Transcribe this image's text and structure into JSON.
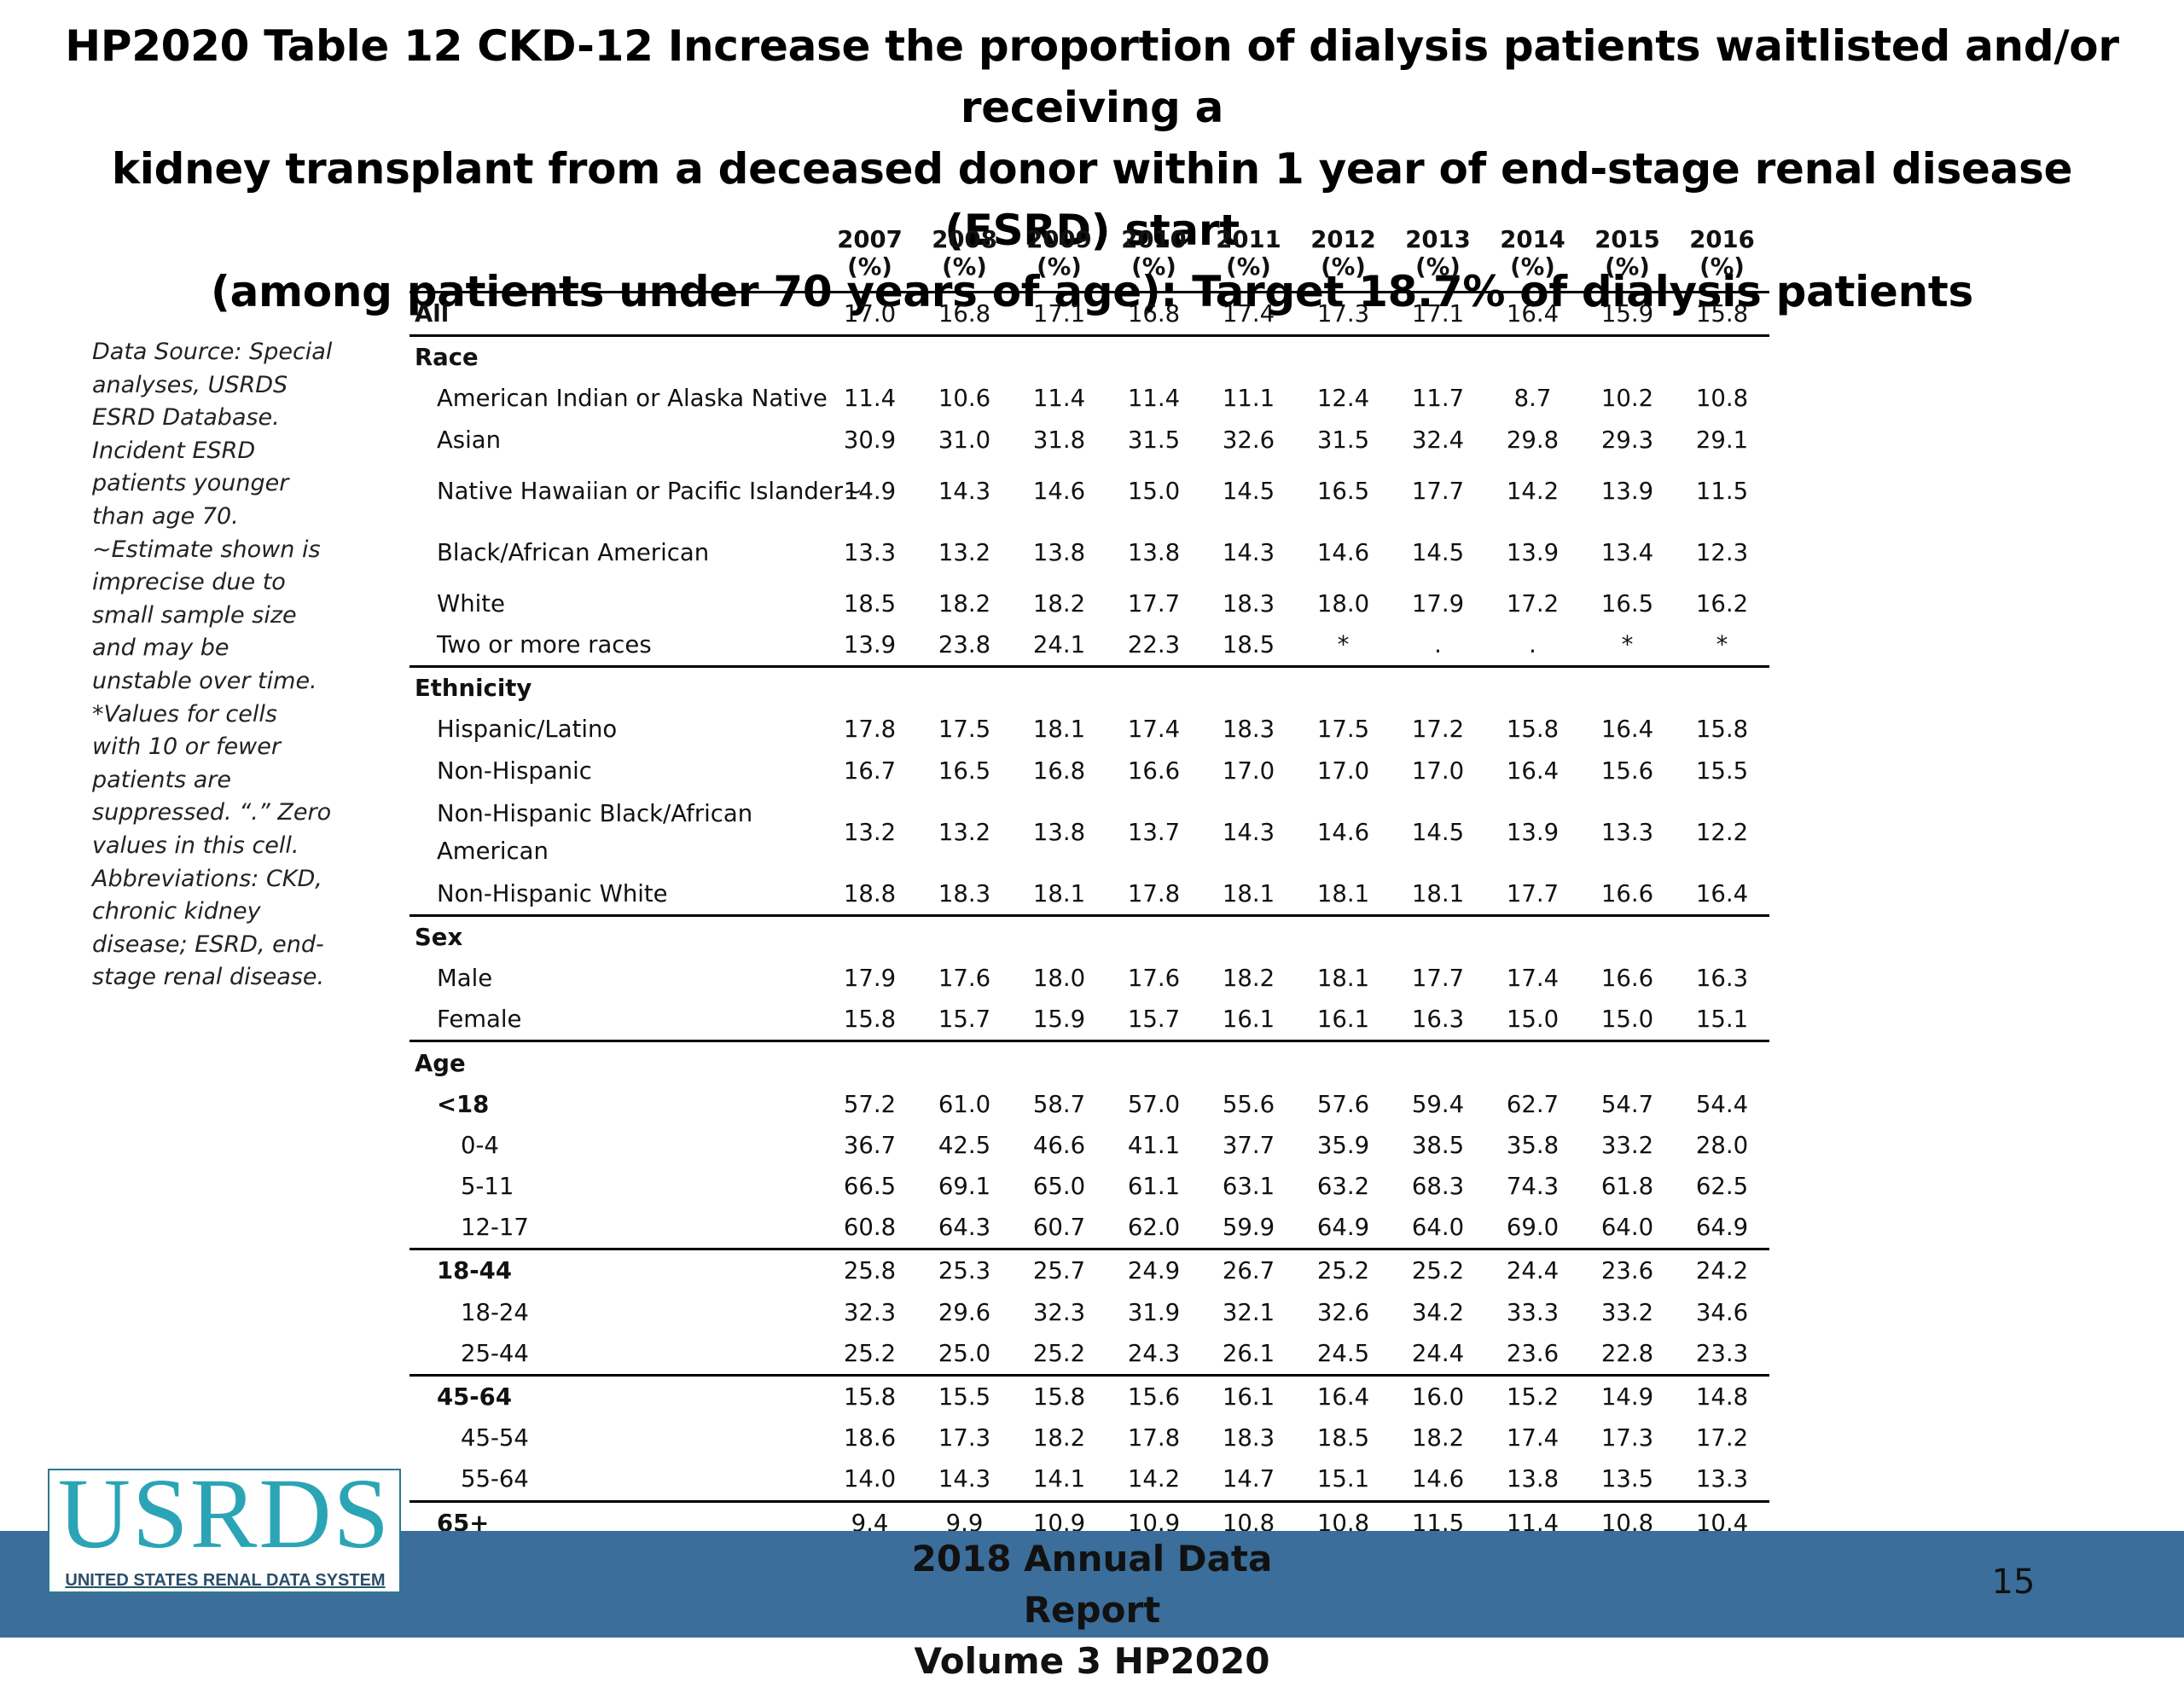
{
  "title": {
    "line1": "HP2020 Table 12 CKD-12 Increase the proportion of dialysis patients waitlisted and/or receiving a",
    "line2": "kidney transplant from a deceased donor within 1 year of end-stage renal disease (ESRD) start",
    "line3": "(among patients under 70 years of age): Target 18.7% of dialysis patients"
  },
  "sidenote": {
    "lines": [
      "Data Source: Special",
      "analyses, USRDS",
      "ESRD Database.",
      "Incident ESRD",
      "patients younger",
      "than age 70.",
      "~Estimate shown is",
      "imprecise due to",
      "small sample size",
      "and may be",
      "unstable over time.",
      "*Values for cells",
      "with 10 or fewer",
      "patients are",
      "suppressed. “.” Zero",
      "values in this cell.",
      "Abbreviations: CKD,",
      "chronic kidney",
      "disease; ESRD, end-",
      "stage renal disease."
    ]
  },
  "table": {
    "years": [
      "2007",
      "2008",
      "2009",
      "2010",
      "2011",
      "2012",
      "2013",
      "2014",
      "2015",
      "2016"
    ],
    "unit": "(%)",
    "rows": [
      {
        "label": "All",
        "values": [
          "17.0",
          "16.8",
          "17.1",
          "16.8",
          "17.4",
          "17.3",
          "17.1",
          "16.4",
          "15.9",
          "15.8"
        ]
      },
      {
        "label": "Race",
        "values": []
      },
      {
        "label": "American Indian or Alaska Native",
        "values": [
          "11.4",
          "10.6",
          "11.4",
          "11.4",
          "11.1",
          "12.4",
          "11.7",
          "8.7",
          "10.2",
          "10.8"
        ]
      },
      {
        "label": "Asian",
        "values": [
          "30.9",
          "31.0",
          "31.8",
          "31.5",
          "32.6",
          "31.5",
          "32.4",
          "29.8",
          "29.3",
          "29.1"
        ]
      },
      {
        "label": "Native Hawaiian or Pacific Islander~",
        "values": [
          "14.9",
          "14.3",
          "14.6",
          "15.0",
          "14.5",
          "16.5",
          "17.7",
          "14.2",
          "13.9",
          "11.5"
        ]
      },
      {
        "label": "Black/African American",
        "values": [
          "13.3",
          "13.2",
          "13.8",
          "13.8",
          "14.3",
          "14.6",
          "14.5",
          "13.9",
          "13.4",
          "12.3"
        ]
      },
      {
        "label": "White",
        "values": [
          "18.5",
          "18.2",
          "18.2",
          "17.7",
          "18.3",
          "18.0",
          "17.9",
          "17.2",
          "16.5",
          "16.2"
        ]
      },
      {
        "label": "Two or more races",
        "values": [
          "13.9",
          "23.8",
          "24.1",
          "22.3",
          "18.5",
          "*",
          ".",
          ".",
          "*",
          "*"
        ]
      },
      {
        "label": "Ethnicity",
        "values": []
      },
      {
        "label": "Hispanic/Latino",
        "values": [
          "17.8",
          "17.5",
          "18.1",
          "17.4",
          "18.3",
          "17.5",
          "17.2",
          "15.8",
          "16.4",
          "15.8"
        ]
      },
      {
        "label": "Non-Hispanic",
        "values": [
          "16.7",
          "16.5",
          "16.8",
          "16.6",
          "17.0",
          "17.0",
          "17.0",
          "16.4",
          "15.6",
          "15.5"
        ]
      },
      {
        "label": "Non-Hispanic Black/African American",
        "values": [
          "13.2",
          "13.2",
          "13.8",
          "13.7",
          "14.3",
          "14.6",
          "14.5",
          "13.9",
          "13.3",
          "12.2"
        ]
      },
      {
        "label": "Non-Hispanic White",
        "values": [
          "18.8",
          "18.3",
          "18.1",
          "17.8",
          "18.1",
          "18.1",
          "18.1",
          "17.7",
          "16.6",
          "16.4"
        ]
      },
      {
        "label": "Sex",
        "values": []
      },
      {
        "label": "Male",
        "values": [
          "17.9",
          "17.6",
          "18.0",
          "17.6",
          "18.2",
          "18.1",
          "17.7",
          "17.4",
          "16.6",
          "16.3"
        ]
      },
      {
        "label": "Female",
        "values": [
          "15.8",
          "15.7",
          "15.9",
          "15.7",
          "16.1",
          "16.1",
          "16.3",
          "15.0",
          "15.0",
          "15.1"
        ]
      },
      {
        "label": "Age",
        "values": []
      },
      {
        "label": "<18",
        "values": [
          "57.2",
          "61.0",
          "58.7",
          "57.0",
          "55.6",
          "57.6",
          "59.4",
          "62.7",
          "54.7",
          "54.4"
        ]
      },
      {
        "label": "0-4",
        "values": [
          "36.7",
          "42.5",
          "46.6",
          "41.1",
          "37.7",
          "35.9",
          "38.5",
          "35.8",
          "33.2",
          "28.0"
        ]
      },
      {
        "label": "5-11",
        "values": [
          "66.5",
          "69.1",
          "65.0",
          "61.1",
          "63.1",
          "63.2",
          "68.3",
          "74.3",
          "61.8",
          "62.5"
        ]
      },
      {
        "label": "12-17",
        "values": [
          "60.8",
          "64.3",
          "60.7",
          "62.0",
          "59.9",
          "64.9",
          "64.0",
          "69.0",
          "64.0",
          "64.9"
        ]
      },
      {
        "label": "18-44",
        "values": [
          "25.8",
          "25.3",
          "25.7",
          "24.9",
          "26.7",
          "25.2",
          "25.2",
          "24.4",
          "23.6",
          "24.2"
        ]
      },
      {
        "label": "18-24",
        "values": [
          "32.3",
          "29.6",
          "32.3",
          "31.9",
          "32.1",
          "32.6",
          "34.2",
          "33.3",
          "33.2",
          "34.6"
        ]
      },
      {
        "label": "25-44",
        "values": [
          "25.2",
          "25.0",
          "25.2",
          "24.3",
          "26.1",
          "24.5",
          "24.4",
          "23.6",
          "22.8",
          "23.3"
        ]
      },
      {
        "label": "45-64",
        "values": [
          "15.8",
          "15.5",
          "15.8",
          "15.6",
          "16.1",
          "16.4",
          "16.0",
          "15.2",
          "14.9",
          "14.8"
        ]
      },
      {
        "label": "45-54",
        "values": [
          "18.6",
          "17.3",
          "18.2",
          "17.8",
          "18.3",
          "18.5",
          "18.2",
          "17.4",
          "17.3",
          "17.2"
        ]
      },
      {
        "label": "55-64",
        "values": [
          "14.0",
          "14.3",
          "14.1",
          "14.2",
          "14.7",
          "15.1",
          "14.6",
          "13.8",
          "13.5",
          "13.3"
        ]
      },
      {
        "label": "65+",
        "values": [
          "9.4",
          "9.9",
          "10.9",
          "10.9",
          "10.8",
          "10.8",
          "11.5",
          "11.4",
          "10.8",
          "10.4"
        ]
      }
    ]
  },
  "footer": {
    "line1": "2018 Annual Data Report",
    "line2": "Volume 3 HP2020",
    "page_number": "15",
    "bar_color": "#3b6e9a"
  },
  "logo": {
    "main": "USRDS",
    "sub": "UNITED STATES RENAL DATA SYSTEM"
  }
}
